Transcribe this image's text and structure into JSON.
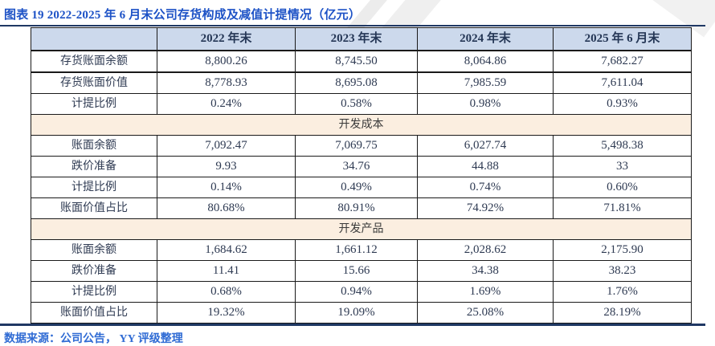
{
  "title": "图表 19 2022-2025 年 6 月末公司存货构成及减值计提情况（亿元）",
  "source_note": "数据来源：公司公告， YY 评级整理",
  "colors": {
    "title_blue": "#1d52c6",
    "source_blue": "#2f6bd4",
    "header_bg": "#ccd9ec",
    "section_bg": "#fbeee0",
    "rule_navy": "#1f3864",
    "table_text": "#2e3a52"
  },
  "table": {
    "columns": [
      "",
      "2022 年末",
      "2023 年末",
      "2024 年末",
      "2025 年 6 月末"
    ],
    "rows": [
      {
        "type": "data",
        "label": "存货账面余额",
        "values": [
          "8,800.26",
          "8,745.50",
          "8,064.86",
          "7,682.27"
        ]
      },
      {
        "type": "data",
        "label": "存货账面价值",
        "values": [
          "8,778.93",
          "8,695.08",
          "7,985.59",
          "7,611.04"
        ]
      },
      {
        "type": "data",
        "label": "计提比例",
        "values": [
          "0.24%",
          "0.58%",
          "0.98%",
          "0.93%"
        ]
      },
      {
        "type": "section",
        "label": "开发成本"
      },
      {
        "type": "data",
        "label": "账面余额",
        "values": [
          "7,092.47",
          "7,069.75",
          "6,027.74",
          "5,498.38"
        ]
      },
      {
        "type": "data",
        "label": "跌价准备",
        "values": [
          "9.93",
          "34.76",
          "44.88",
          "33"
        ]
      },
      {
        "type": "data",
        "label": "计提比例",
        "values": [
          "0.14%",
          "0.49%",
          "0.74%",
          "0.60%"
        ]
      },
      {
        "type": "data",
        "label": "账面价值占比",
        "values": [
          "80.68%",
          "80.91%",
          "74.92%",
          "71.81%"
        ]
      },
      {
        "type": "section",
        "label": "开发产品"
      },
      {
        "type": "data",
        "label": "账面余额",
        "values": [
          "1,684.62",
          "1,661.12",
          "2,028.62",
          "2,175.90"
        ]
      },
      {
        "type": "data",
        "label": "跌价准备",
        "values": [
          "11.41",
          "15.66",
          "34.38",
          "38.23"
        ]
      },
      {
        "type": "data",
        "label": "计提比例",
        "values": [
          "0.68%",
          "0.94%",
          "1.69%",
          "1.76%"
        ]
      },
      {
        "type": "data",
        "label": "账面价值占比",
        "values": [
          "19.32%",
          "19.09%",
          "25.08%",
          "28.19%"
        ]
      }
    ]
  }
}
